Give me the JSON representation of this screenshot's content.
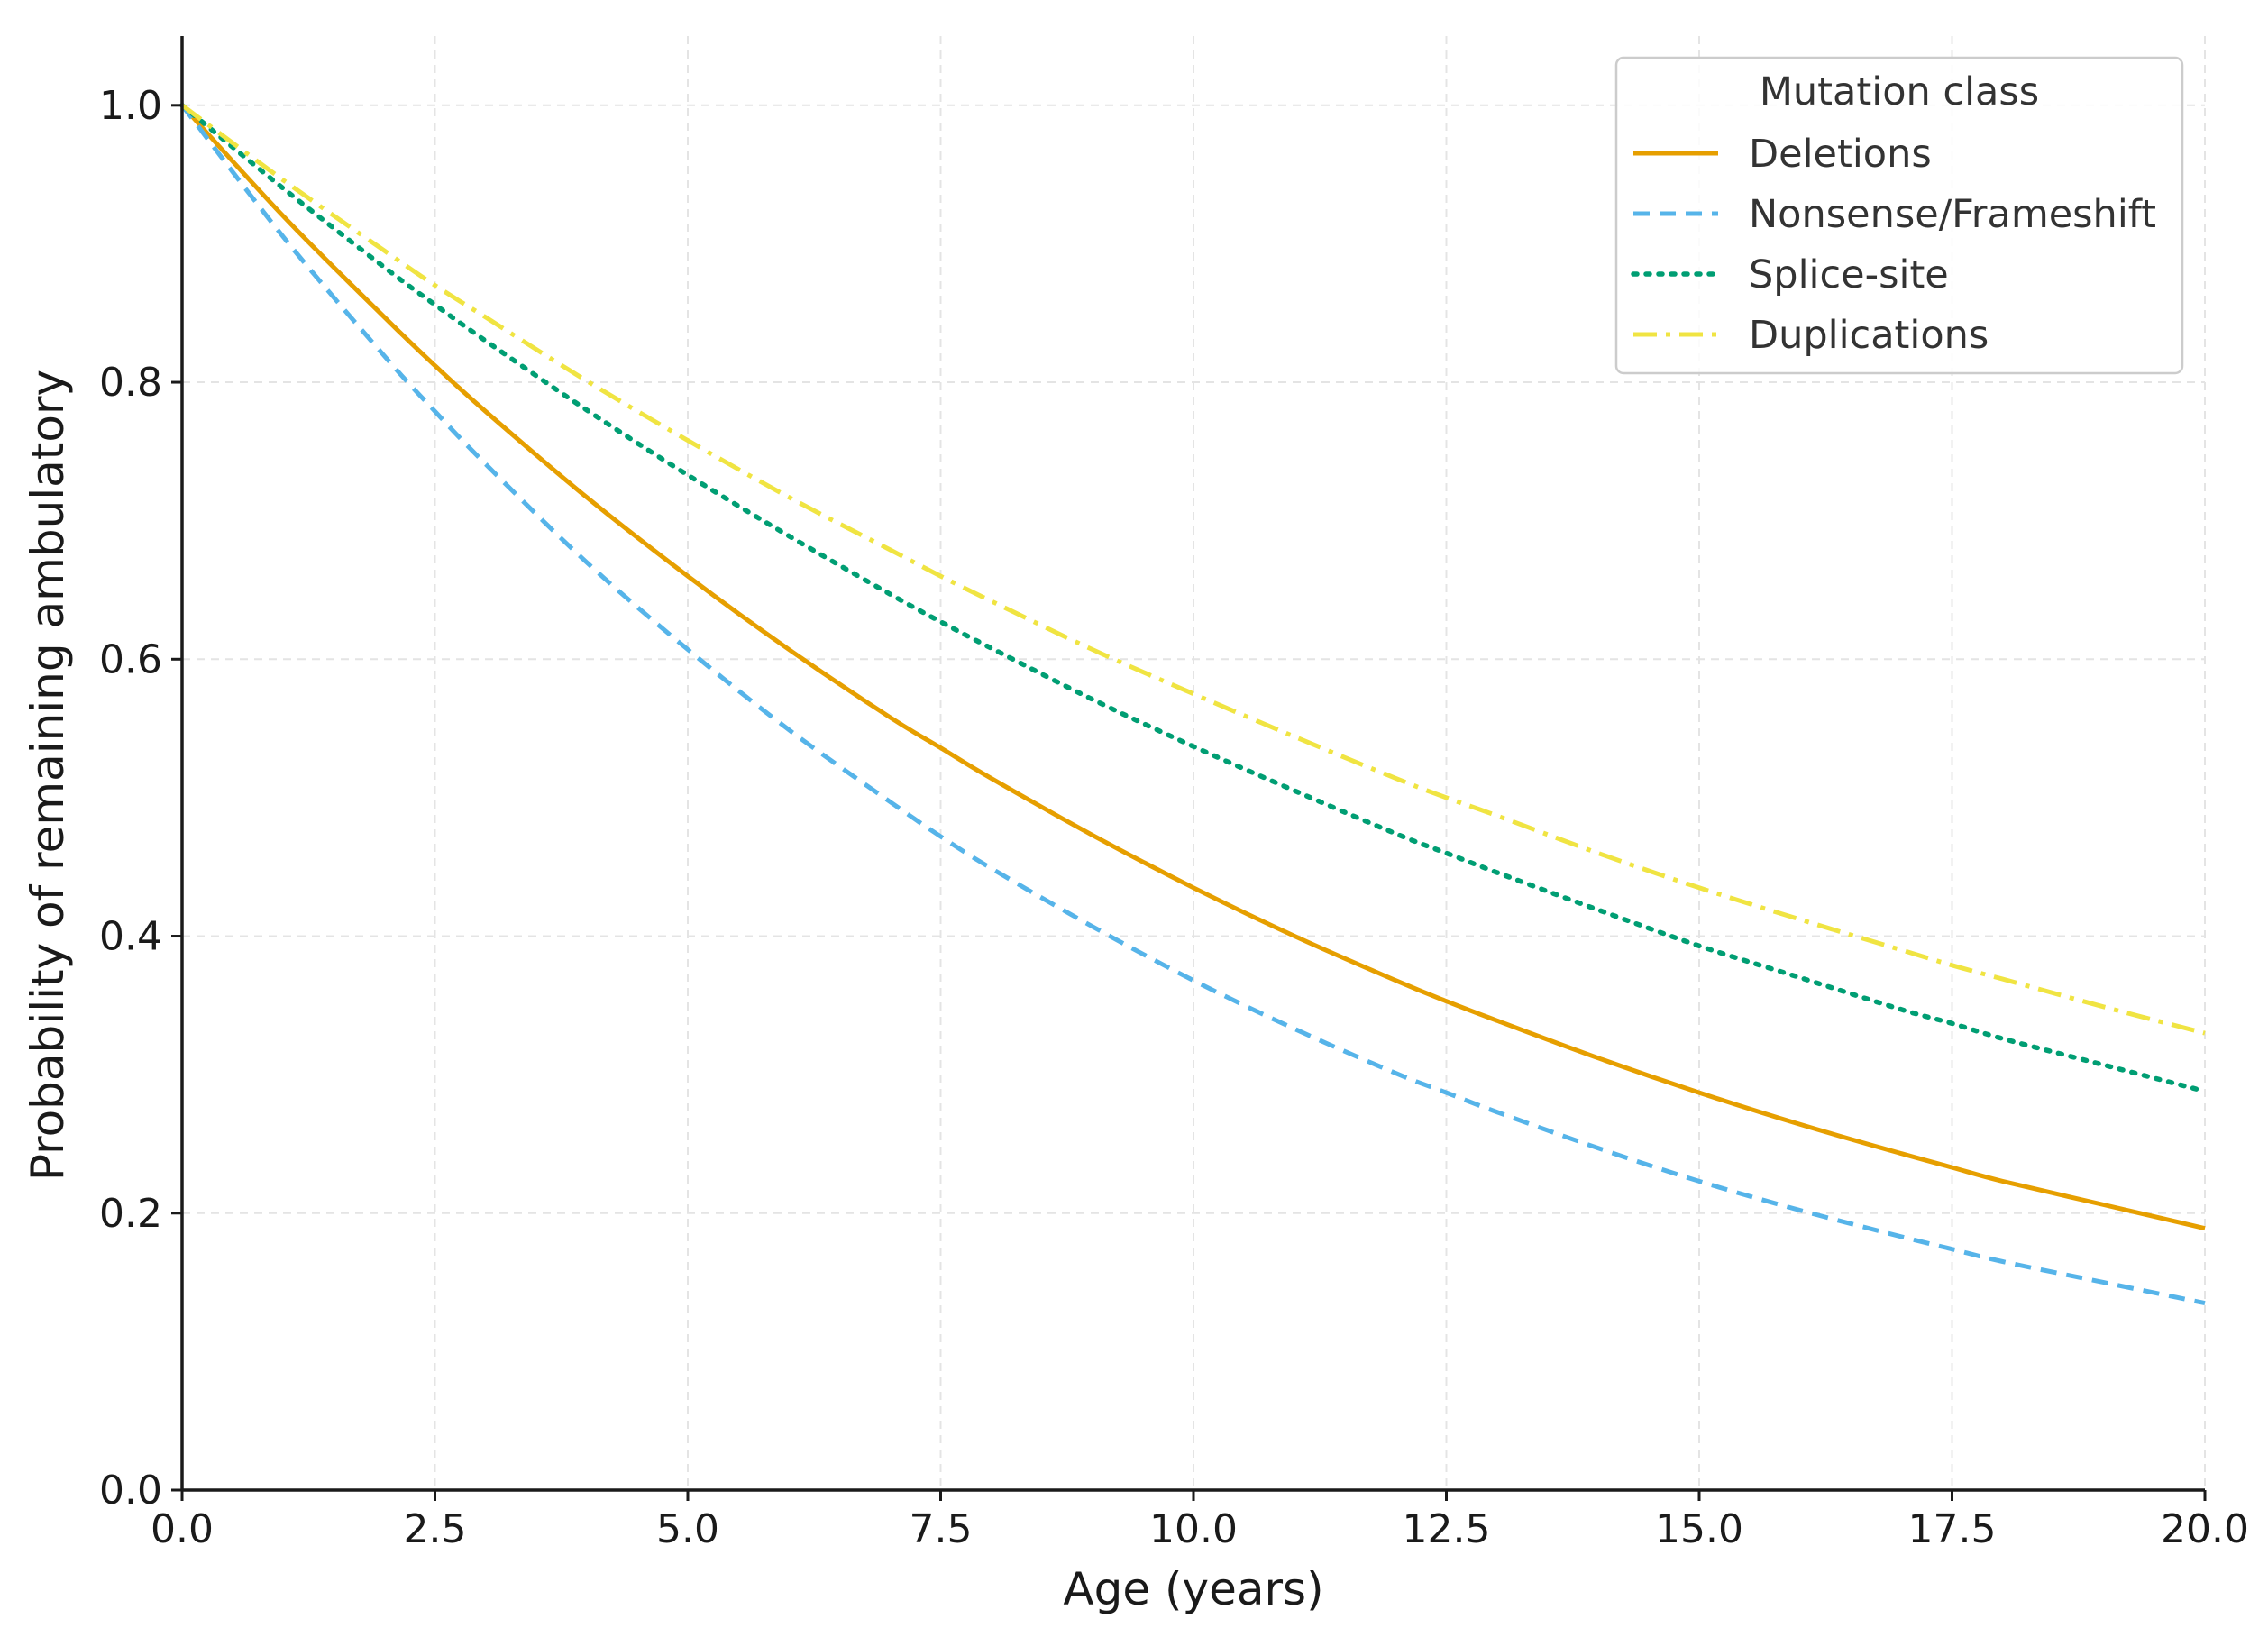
{
  "chart_data": {
    "type": "line",
    "title": "",
    "xlabel": "Age (years)",
    "ylabel": "Probability of remaining ambulatory",
    "xlim": [
      0,
      20
    ],
    "ylim": [
      0,
      1.05
    ],
    "x_ticks": [
      "0.0",
      "2.5",
      "5.0",
      "7.5",
      "10.0",
      "12.5",
      "15.0",
      "17.5",
      "20.0"
    ],
    "y_ticks": [
      "0.0",
      "0.2",
      "0.4",
      "0.6",
      "0.8",
      "1.0"
    ],
    "grid": true,
    "legend": {
      "title": "Mutation class",
      "position": "top-right"
    },
    "x": [
      0,
      1,
      2,
      2.5,
      3,
      4,
      5,
      6,
      7,
      7.5,
      8,
      9,
      10,
      11,
      12,
      12.5,
      13,
      14,
      15,
      16,
      17,
      17.5,
      18,
      19,
      20
    ],
    "series": [
      {
        "name": "Deletions",
        "color": "#E69F00",
        "dash": "solid",
        "values": [
          1.0,
          0.92,
          0.847,
          0.812,
          0.779,
          0.717,
          0.66,
          0.607,
          0.558,
          0.536,
          0.514,
          0.473,
          0.435,
          0.4,
          0.368,
          0.353,
          0.339,
          0.312,
          0.287,
          0.264,
          0.243,
          0.233,
          0.223,
          0.206,
          0.189
        ]
      },
      {
        "name": "Nonsense/Frameshift",
        "color": "#56B4E9",
        "dash": "dashed",
        "values": [
          1.0,
          0.905,
          0.819,
          0.779,
          0.741,
          0.67,
          0.607,
          0.549,
          0.497,
          0.472,
          0.449,
          0.407,
          0.368,
          0.333,
          0.301,
          0.287,
          0.273,
          0.247,
          0.223,
          0.202,
          0.183,
          0.174,
          0.165,
          0.15,
          0.135
        ]
      },
      {
        "name": "Splice-site",
        "color": "#009E73",
        "dash": "dotted",
        "values": [
          1.0,
          0.94,
          0.883,
          0.856,
          0.83,
          0.78,
          0.733,
          0.689,
          0.647,
          0.627,
          0.608,
          0.571,
          0.537,
          0.505,
          0.474,
          0.46,
          0.446,
          0.419,
          0.393,
          0.37,
          0.347,
          0.337,
          0.326,
          0.307,
          0.288
        ]
      },
      {
        "name": "Duplications",
        "color": "#F0E442",
        "dash": "dashdot",
        "values": [
          1.0,
          0.946,
          0.895,
          0.87,
          0.847,
          0.801,
          0.758,
          0.717,
          0.679,
          0.66,
          0.642,
          0.607,
          0.575,
          0.544,
          0.514,
          0.5,
          0.487,
          0.46,
          0.435,
          0.412,
          0.39,
          0.379,
          0.369,
          0.349,
          0.33
        ]
      }
    ]
  }
}
